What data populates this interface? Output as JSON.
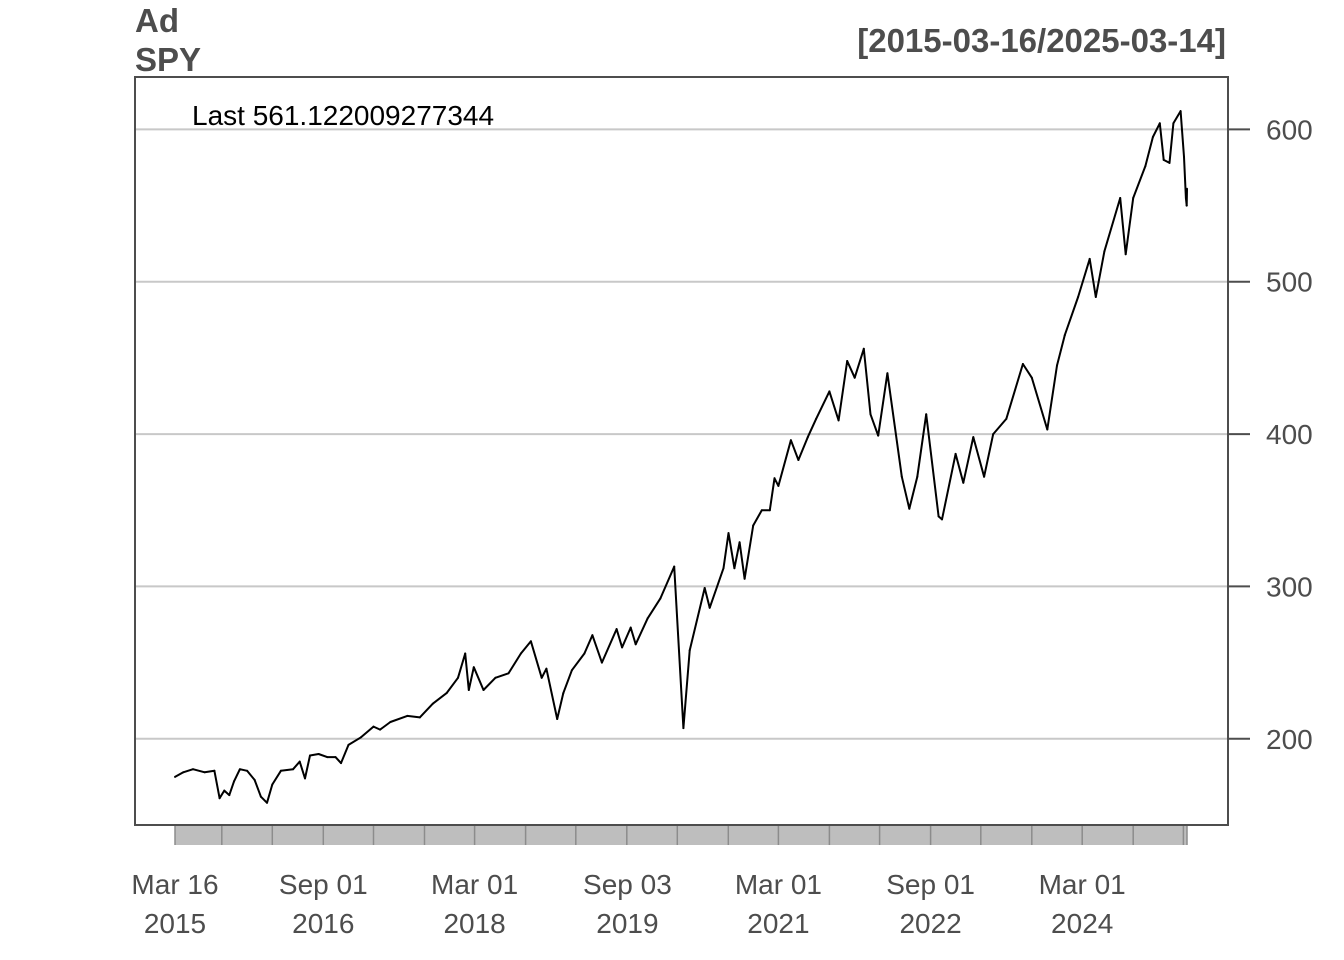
{
  "chart_data": {
    "type": "line",
    "title": "Ad",
    "subtitle": "SPY",
    "date_range": "[2015-03-16/2025-03-14]",
    "last_label": "Last 561.122009277344",
    "series": [
      {
        "values": [
          [
            "2015-03-16",
            175
          ],
          [
            "2015-04-15",
            178
          ],
          [
            "2015-05-20",
            180
          ],
          [
            "2015-07-01",
            178
          ],
          [
            "2015-08-05",
            179
          ],
          [
            "2015-08-24",
            161
          ],
          [
            "2015-09-10",
            166
          ],
          [
            "2015-09-28",
            163
          ],
          [
            "2015-10-15",
            172
          ],
          [
            "2015-11-05",
            180
          ],
          [
            "2015-12-01",
            179
          ],
          [
            "2015-12-28",
            173
          ],
          [
            "2016-01-20",
            162
          ],
          [
            "2016-02-11",
            158
          ],
          [
            "2016-03-01",
            170
          ],
          [
            "2016-04-01",
            179
          ],
          [
            "2016-05-15",
            180
          ],
          [
            "2016-06-08",
            185
          ],
          [
            "2016-06-27",
            174
          ],
          [
            "2016-07-15",
            189
          ],
          [
            "2016-08-15",
            190
          ],
          [
            "2016-09-15",
            188
          ],
          [
            "2016-10-15",
            188
          ],
          [
            "2016-11-04",
            184
          ],
          [
            "2016-12-01",
            196
          ],
          [
            "2017-01-15",
            201
          ],
          [
            "2017-03-01",
            208
          ],
          [
            "2017-03-25",
            206
          ],
          [
            "2017-05-01",
            211
          ],
          [
            "2017-07-01",
            215
          ],
          [
            "2017-08-15",
            214
          ],
          [
            "2017-10-01",
            223
          ],
          [
            "2017-11-20",
            230
          ],
          [
            "2017-12-31",
            240
          ],
          [
            "2018-01-26",
            256
          ],
          [
            "2018-02-08",
            232
          ],
          [
            "2018-02-26",
            247
          ],
          [
            "2018-04-02",
            232
          ],
          [
            "2018-05-15",
            240
          ],
          [
            "2018-07-01",
            243
          ],
          [
            "2018-08-15",
            256
          ],
          [
            "2018-09-20",
            264
          ],
          [
            "2018-10-29",
            240
          ],
          [
            "2018-11-15",
            246
          ],
          [
            "2018-12-24",
            213
          ],
          [
            "2019-01-15",
            230
          ],
          [
            "2019-02-15",
            245
          ],
          [
            "2019-04-01",
            256
          ],
          [
            "2019-04-30",
            268
          ],
          [
            "2019-06-03",
            250
          ],
          [
            "2019-07-26",
            272
          ],
          [
            "2019-08-15",
            260
          ],
          [
            "2019-09-15",
            273
          ],
          [
            "2019-10-03",
            262
          ],
          [
            "2019-11-15",
            279
          ],
          [
            "2019-12-31",
            292
          ],
          [
            "2020-02-19",
            313
          ],
          [
            "2020-03-23",
            207
          ],
          [
            "2020-04-15",
            258
          ],
          [
            "2020-06-08",
            299
          ],
          [
            "2020-06-26",
            286
          ],
          [
            "2020-08-15",
            312
          ],
          [
            "2020-09-02",
            335
          ],
          [
            "2020-09-23",
            312
          ],
          [
            "2020-10-12",
            329
          ],
          [
            "2020-10-30",
            305
          ],
          [
            "2020-11-30",
            340
          ],
          [
            "2020-12-31",
            350
          ],
          [
            "2021-01-29",
            350
          ],
          [
            "2021-02-15",
            371
          ],
          [
            "2021-03-01",
            366
          ],
          [
            "2021-04-15",
            396
          ],
          [
            "2021-05-12",
            383
          ],
          [
            "2021-06-15",
            398
          ],
          [
            "2021-07-15",
            410
          ],
          [
            "2021-09-01",
            428
          ],
          [
            "2021-10-04",
            409
          ],
          [
            "2021-11-04",
            448
          ],
          [
            "2021-12-01",
            437
          ],
          [
            "2022-01-03",
            456
          ],
          [
            "2022-01-27",
            413
          ],
          [
            "2022-02-24",
            399
          ],
          [
            "2022-03-29",
            440
          ],
          [
            "2022-05-20",
            372
          ],
          [
            "2022-06-16",
            351
          ],
          [
            "2022-07-15",
            372
          ],
          [
            "2022-08-16",
            413
          ],
          [
            "2022-09-30",
            346
          ],
          [
            "2022-10-12",
            344
          ],
          [
            "2022-11-30",
            387
          ],
          [
            "2022-12-28",
            368
          ],
          [
            "2023-02-02",
            398
          ],
          [
            "2023-03-13",
            372
          ],
          [
            "2023-04-15",
            400
          ],
          [
            "2023-06-01",
            410
          ],
          [
            "2023-07-31",
            446
          ],
          [
            "2023-09-01",
            437
          ],
          [
            "2023-10-27",
            403
          ],
          [
            "2023-12-01",
            445
          ],
          [
            "2023-12-29",
            465
          ],
          [
            "2024-02-15",
            490
          ],
          [
            "2024-03-28",
            515
          ],
          [
            "2024-04-19",
            490
          ],
          [
            "2024-05-20",
            520
          ],
          [
            "2024-07-16",
            555
          ],
          [
            "2024-08-05",
            518
          ],
          [
            "2024-09-01",
            555
          ],
          [
            "2024-10-15",
            576
          ],
          [
            "2024-11-11",
            595
          ],
          [
            "2024-12-06",
            604
          ],
          [
            "2024-12-20",
            580
          ],
          [
            "2025-01-10",
            578
          ],
          [
            "2025-01-24",
            604
          ],
          [
            "2025-02-19",
            612
          ],
          [
            "2025-03-03",
            582
          ],
          [
            "2025-03-10",
            555
          ],
          [
            "2025-03-13",
            550
          ],
          [
            "2025-03-14",
            561
          ]
        ]
      }
    ],
    "x_ticks": [
      {
        "date": "2015-03-16",
        "label_month": "Mar 16",
        "label_year": "2015"
      },
      {
        "date": "2016-09-01",
        "label_month": "Sep 01",
        "label_year": "2016"
      },
      {
        "date": "2018-03-01",
        "label_month": "Mar 01",
        "label_year": "2018"
      },
      {
        "date": "2019-09-03",
        "label_month": "Sep 03",
        "label_year": "2019"
      },
      {
        "date": "2021-03-01",
        "label_month": "Mar 01",
        "label_year": "2021"
      },
      {
        "date": "2022-09-01",
        "label_month": "Sep 01",
        "label_year": "2022"
      },
      {
        "date": "2024-03-01",
        "label_month": "Mar 01",
        "label_year": "2024"
      }
    ],
    "y_ticks": [
      200,
      300,
      400,
      500,
      600
    ],
    "xlim": [
      "2015-03-16",
      "2025-03-14"
    ],
    "ylim": [
      143.4,
      634.4
    ],
    "grid": "horizontal",
    "y_axis_side": "right",
    "line_color": "#000000",
    "grid_color": "#c8c8c8",
    "band_color": "#bebebe"
  }
}
